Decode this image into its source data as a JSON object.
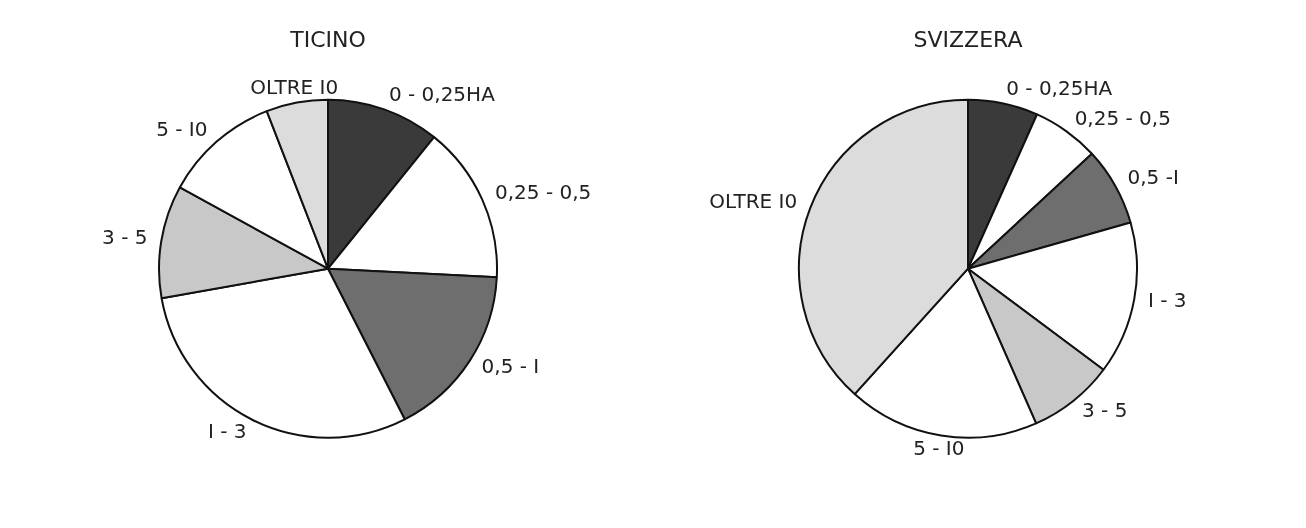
{
  "chart_data": [
    {
      "type": "pie",
      "title": "TICINO",
      "categories": [
        "0 - 0,25HA",
        "0,25 - 0,5",
        "0,5 - I",
        "I - 3",
        "3 - 5",
        "5 - I0",
        "OLTRE I0"
      ],
      "values": [
        10.8,
        15,
        16.7,
        29.7,
        10.8,
        11.1,
        5.9
      ],
      "colors": [
        "#3a3a3a",
        "#ffffff",
        "#6e6e6e",
        "#ffffff",
        "#c8c8c8",
        "#ffffff",
        "#dcdcdc"
      ],
      "legend": false
    },
    {
      "type": "pie",
      "title": "SVIZZERA",
      "categories": [
        "0 - 0,25HA",
        "0,25 - 0,5",
        "0,5 -I",
        "I - 3",
        "3 - 5",
        "5 - I0",
        "OLTRE I0"
      ],
      "values": [
        6.7,
        6.4,
        7.5,
        14.6,
        8.2,
        18.3,
        38.3
      ],
      "colors": [
        "#3a3a3a",
        "#ffffff",
        "#6e6e6e",
        "#ffffff",
        "#c8c8c8",
        "#ffffff",
        "#dcdcdc"
      ],
      "legend": false
    }
  ]
}
